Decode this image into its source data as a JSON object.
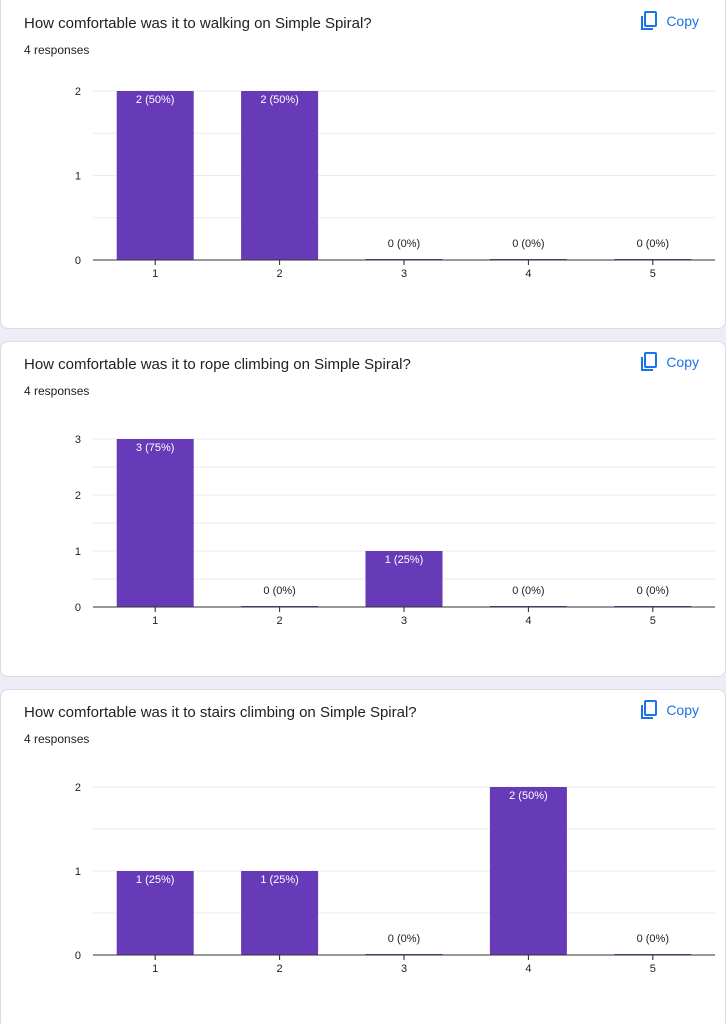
{
  "cards": [
    {
      "title": "How comfortable was it to walking on Simple Spiral?",
      "responses": "4 responses",
      "copy_label": "Copy"
    },
    {
      "title": "How comfortable was it to rope climbing on Simple Spiral?",
      "responses": "4 responses",
      "copy_label": "Copy"
    },
    {
      "title": "How comfortable was it to stairs climbing on Simple Spiral?",
      "responses": "4 responses",
      "copy_label": "Copy"
    }
  ],
  "colors": {
    "bar": "#673ab7",
    "copy": "#1a73e8"
  },
  "icons": {
    "copy": "copy-icon"
  },
  "chart_data": [
    {
      "type": "bar",
      "title": "How comfortable was it to walking on Simple Spiral?",
      "categories": [
        "1",
        "2",
        "3",
        "4",
        "5"
      ],
      "values": [
        2,
        2,
        0,
        0,
        0
      ],
      "labels": [
        "2 (50%)",
        "2 (50%)",
        "0 (0%)",
        "0 (0%)",
        "0 (0%)"
      ],
      "yticks": [
        "0",
        "1",
        "2"
      ],
      "ylim": [
        0,
        2
      ],
      "grid": true
    },
    {
      "type": "bar",
      "title": "How comfortable was it to rope climbing on Simple Spiral?",
      "categories": [
        "1",
        "2",
        "3",
        "4",
        "5"
      ],
      "values": [
        3,
        0,
        1,
        0,
        0
      ],
      "labels": [
        "3 (75%)",
        "0 (0%)",
        "1 (25%)",
        "0 (0%)",
        "0 (0%)"
      ],
      "yticks": [
        "0",
        "1",
        "2",
        "3"
      ],
      "ylim": [
        0,
        3
      ],
      "grid": true
    },
    {
      "type": "bar",
      "title": "How comfortable was it to stairs climbing on Simple Spiral?",
      "categories": [
        "1",
        "2",
        "3",
        "4",
        "5"
      ],
      "values": [
        1,
        1,
        0,
        2,
        0
      ],
      "labels": [
        "1 (25%)",
        "1 (25%)",
        "0 (0%)",
        "2 (50%)",
        "0 (0%)"
      ],
      "yticks": [
        "0",
        "1",
        "2"
      ],
      "ylim": [
        0,
        2
      ],
      "grid": true
    }
  ]
}
